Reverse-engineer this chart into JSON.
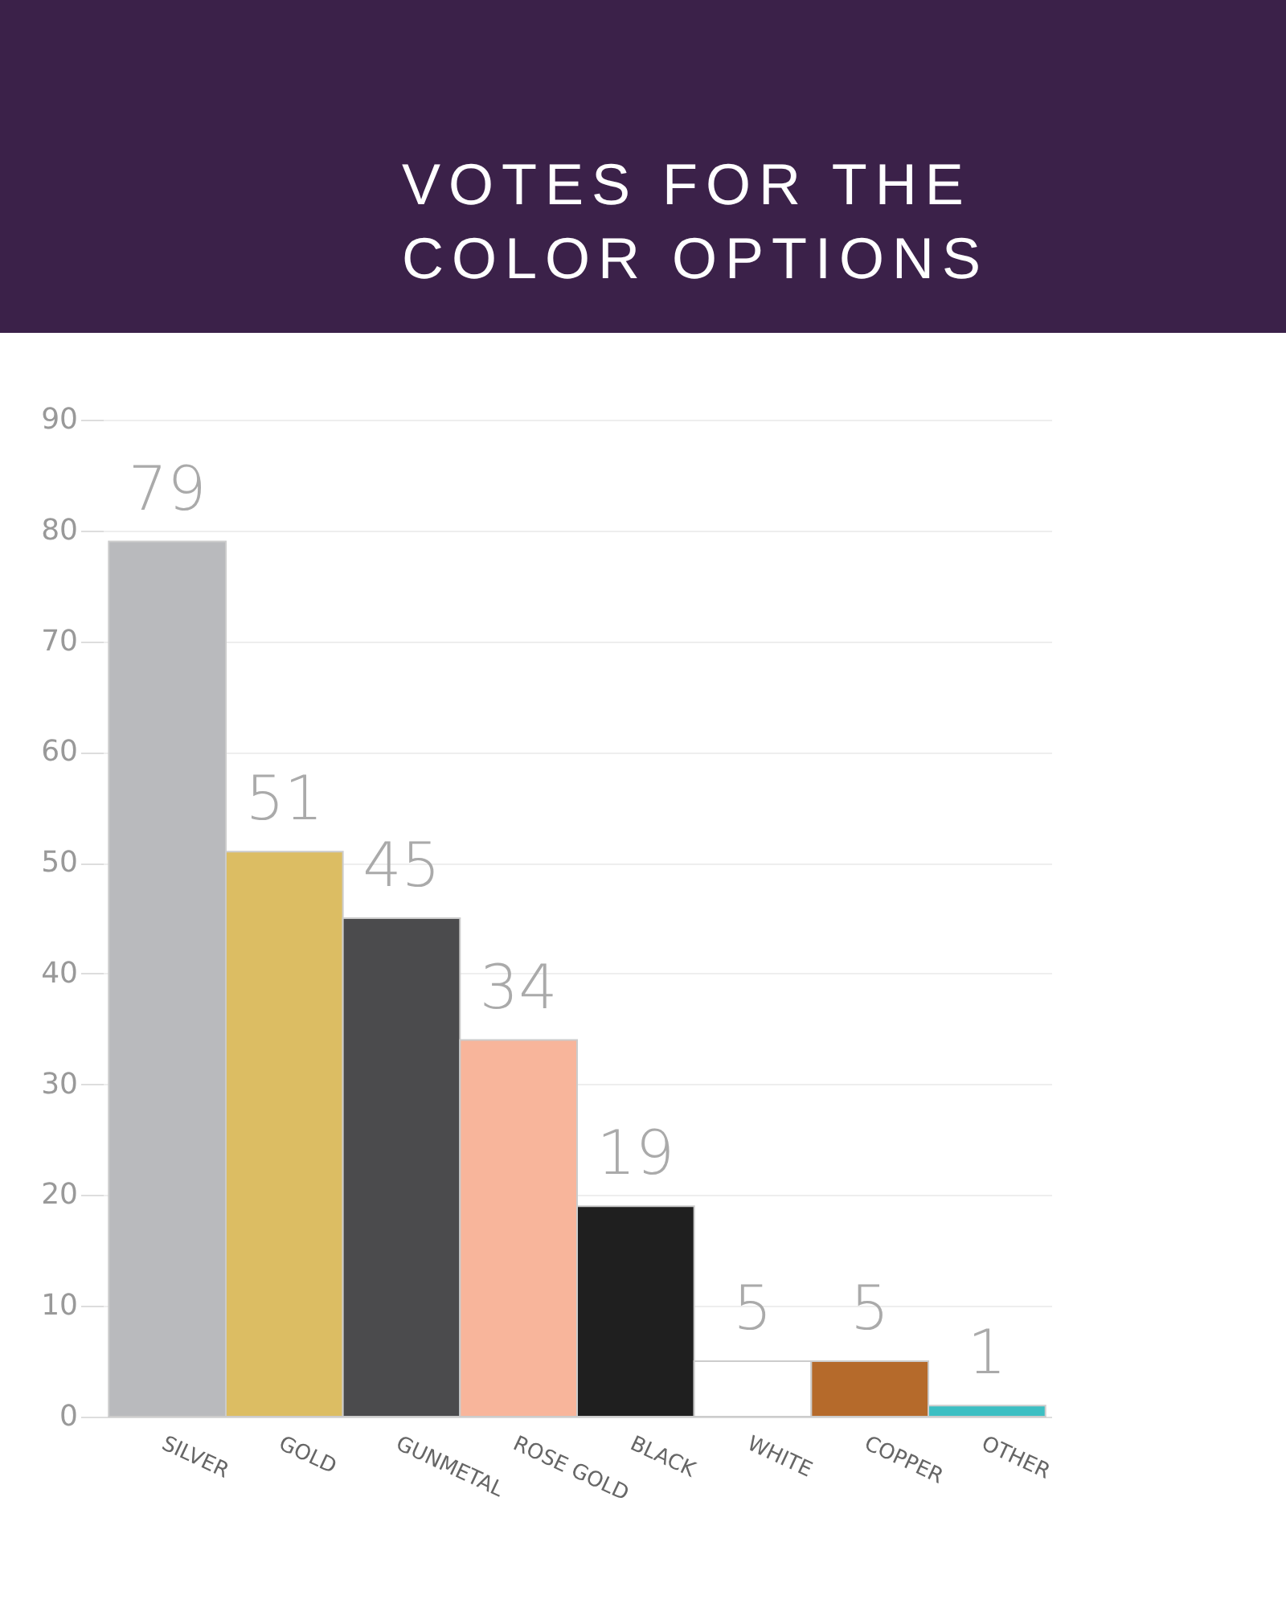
{
  "chart_data": {
    "type": "bar",
    "title": "VOTES FOR THE COLOR OPTIONS",
    "categories": [
      "SILVER",
      "GOLD",
      "GUNMETAL",
      "ROSE GOLD",
      "BLACK",
      "WHITE",
      "COPPER",
      "OTHER"
    ],
    "values": [
      79,
      51,
      45,
      34,
      19,
      5,
      5,
      1
    ],
    "colors": [
      "#b9babd",
      "#dcbd63",
      "#4b4b4d",
      "#f8b59b",
      "#1f1f1f",
      "#ffffff",
      "#b56a2b",
      "#3cbfc3"
    ],
    "ylim": [
      0,
      90
    ],
    "yticks": [
      0,
      10,
      20,
      30,
      40,
      50,
      60,
      70,
      80,
      90
    ],
    "grid": "y",
    "data_labels": true
  }
}
